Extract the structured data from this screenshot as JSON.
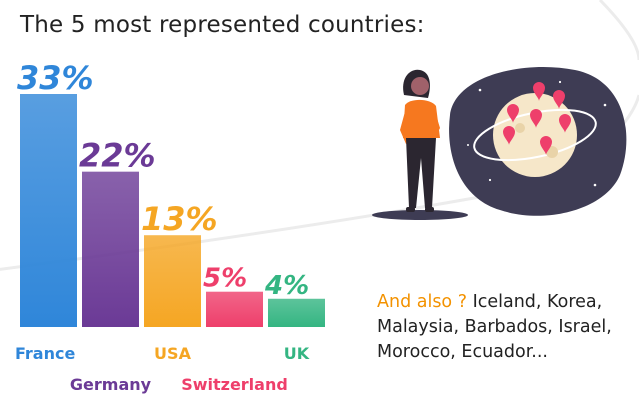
{
  "title": "The 5 most represented countries:",
  "colors": {
    "France": "#2f86d9",
    "Germany": "#6b3a96",
    "USA": "#f5a623",
    "Switzerland": "#ee3f6b",
    "UK": "#34b582"
  },
  "chart_data": {
    "type": "bar",
    "categories": [
      "France",
      "Germany",
      "USA",
      "Switzerland",
      "UK"
    ],
    "values": [
      33,
      22,
      13,
      5,
      4
    ],
    "labels": [
      "33%",
      "22%",
      "13%",
      "5%",
      "4%"
    ],
    "title": "The 5 most represented countries:",
    "xlabel": "",
    "ylabel": "",
    "grid": false,
    "legend": "none"
  },
  "also": {
    "lead": "And also ?",
    "text": "Iceland, Korea, Malaysia, Barbados, Israel, Morocco, Ecuador..."
  },
  "illustration": {
    "icons": [
      "woman-icon",
      "globe-icon",
      "map-pin-icon"
    ]
  }
}
